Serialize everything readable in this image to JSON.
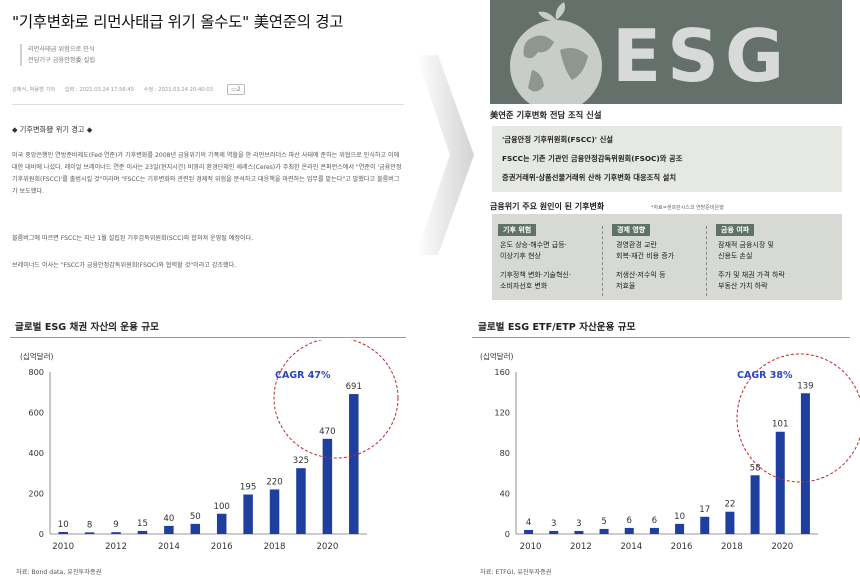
{
  "article": {
    "title": "\"기후변화로 리먼사태급 위기 올수도\" 美연준의 경고",
    "subtitles": [
      "리먼사태급 위험으로 인식",
      "전담기구 금융안정委 설립"
    ],
    "reporter": "김혜식, 박용범 기자",
    "input_label": "입력 : 2021.03.24 17:56:45",
    "modified_label": "수정 : 2021.03.24 20:40:03",
    "share_count": "2",
    "section_heading": "◆ 기후변화發 위기 경고 ◆",
    "paragraphs": [
      "미국 중앙은행인 연방준비제도(Fed·연준)가 기후변화를 2008년 금융위기의 기폭제 역할을 한 리먼브러더스 파산 사태에 준하는 위협으로 인식하고 이에 대한 대비에 나섰다. 레이얼 브레이너드 연준 이사는 23일(현지시간) 비영리 환경단체인 세레스(Ceres)가 주최한 온라인 콘퍼런스에서 \"연준이 '금융안정기후위원회(FSCC)'를 출범시킬 것\"이라며 \"FSCC는 기후변화와 관련된 경제적 위험을 분석하고 대응책을 마련하는 업무를 맡는다\"고 말했다고 블룸버그가 보도했다.",
      "블룸버그에 따르면 FSCC는 지난 1월 설립된 기후감독위원회(SCC)와 합쳐져 운영될 예정이다.",
      "브레이너드 이사는 \"FSCC가 금융안정감독위원회(FSOC)와 협력할 것\"이라고 강조했다."
    ]
  },
  "infographic": {
    "logo_text": "ESG",
    "title": "美연준 기후변화 전담 조직 신설",
    "bullets": [
      "'금융안정 기후위원회(FSCC)' 신설",
      "FSCC는 기존 기관인 금융안정감독위원회(FSOC)와 공조",
      "증권거래위·상품선물거래위 산하 기후변화 대응조직 설치"
    ],
    "causes_title": "금융위기 주요 원인이 된 기후변화",
    "causes_source": "*자료=샌프란시스코 연방준비은행",
    "columns": [
      {
        "header": "기후 위험",
        "lines": [
          "온도 상승·해수면 급등·",
          "이상기후 현상",
          "",
          "기후정책 변화·기술혁신·",
          "소비자선호 변화"
        ]
      },
      {
        "header": "경제 영향",
        "lines": [
          "경영환경 교란",
          "회복·재건 비용 증가",
          "",
          "저생산·저수익 등",
          "저효율"
        ]
      },
      {
        "header": "금융 여파",
        "lines": [
          "잠재적 금융시장 및",
          "신용도 손실",
          "",
          "주가 및 채권 가격 하락",
          "부동산 가치 하락"
        ]
      }
    ]
  },
  "chart_data": [
    {
      "type": "bar",
      "title": "글로벌 ESG 채권 자산의 운용 규모",
      "unit_label": "(십억달러)",
      "categories": [
        "2010",
        "2011",
        "2012",
        "2013",
        "2014",
        "2015",
        "2016",
        "2017",
        "2018",
        "2019",
        "2020",
        "2021"
      ],
      "values": [
        10,
        8,
        9,
        15,
        40,
        50,
        100,
        195,
        220,
        325,
        470,
        691
      ],
      "value_labels": [
        "10",
        "8",
        "9",
        "15",
        "40",
        "50",
        "100",
        "195",
        "220",
        "325",
        "470",
        "691"
      ],
      "x_tick_labels": [
        "2010",
        "2012",
        "2014",
        "2016",
        "2018",
        "2020"
      ],
      "ylim": [
        0,
        800
      ],
      "y_ticks": [
        0,
        200,
        400,
        600,
        800
      ],
      "annotation": "CAGR 47%",
      "source": "자료: Bond data, 유진투자증권",
      "bar_color": "#1f3f9e"
    },
    {
      "type": "bar",
      "title": "글로벌 ESG ETF/ETP 자산운용 규모",
      "unit_label": "(십억달러)",
      "categories": [
        "2010",
        "2011",
        "2012",
        "2013",
        "2014",
        "2015",
        "2016",
        "2017",
        "2018",
        "2019",
        "2020",
        "2021"
      ],
      "values": [
        4,
        3,
        3,
        5,
        6,
        6,
        10,
        17,
        22,
        58,
        101,
        139
      ],
      "value_labels": [
        "4",
        "3",
        "3",
        "5",
        "6",
        "6",
        "10",
        "17",
        "22",
        "58",
        "101",
        "139"
      ],
      "x_tick_labels": [
        "2010",
        "2012",
        "2014",
        "2016",
        "2018",
        "2020"
      ],
      "ylim": [
        0,
        160
      ],
      "y_ticks": [
        0,
        40,
        80,
        120,
        160
      ],
      "annotation": "CAGR 38%",
      "source": "자료: ETFGI, 유진투자증권",
      "bar_color": "#1f3f9e"
    }
  ]
}
